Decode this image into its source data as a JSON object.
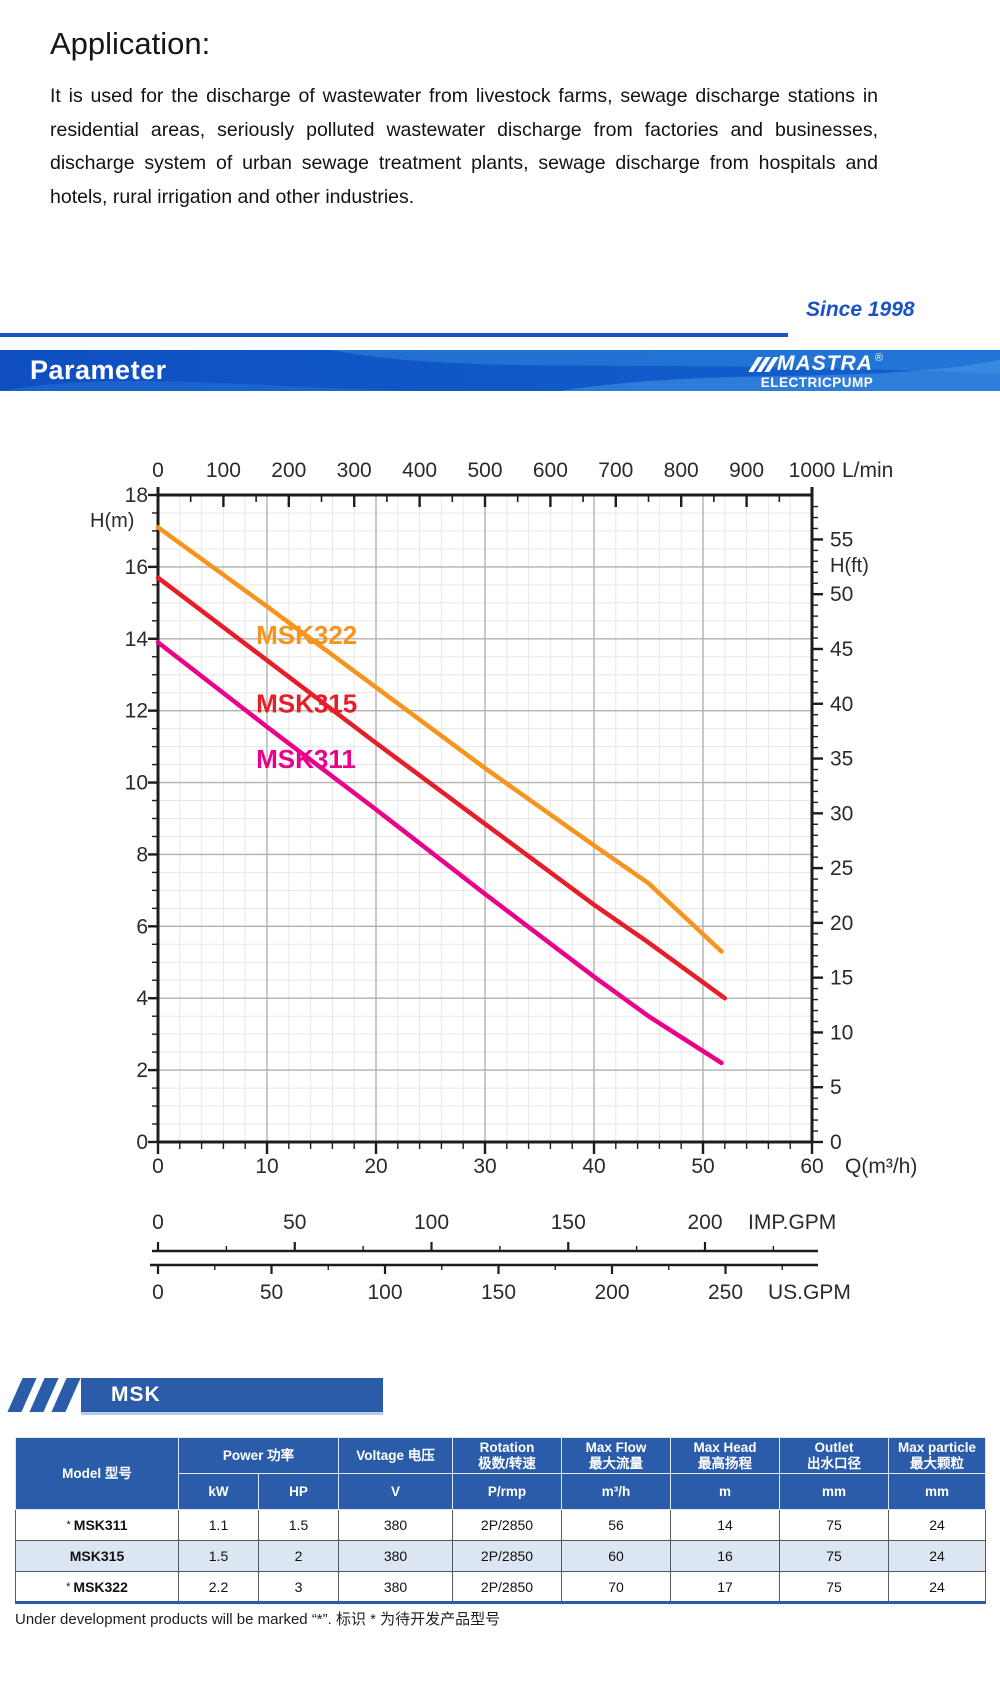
{
  "application": {
    "title": "Application:",
    "body": "It is used for the discharge of wastewater from livestock farms, sewage discharge stations in residential areas, seriously polluted wastewater discharge from factories and businesses, discharge system of urban sewage treatment plants, sewage discharge from hospitals and hotels, rural irrigation and other industries."
  },
  "tagline": {
    "since": "Since 1998"
  },
  "banner": {
    "title": "Parameter",
    "brand": "MASTRA",
    "registered": "®",
    "brand_sub": "ELECTRICPUMP"
  },
  "badge": {
    "label": "MSK"
  },
  "chart_data": {
    "type": "line",
    "title": "",
    "x_bottom": {
      "label": "Q(m³/h)",
      "ticks": [
        0,
        10,
        20,
        30,
        40,
        50,
        60
      ],
      "range": [
        0,
        60
      ]
    },
    "x_top": {
      "label": "L/min",
      "ticks": [
        0,
        100,
        200,
        300,
        400,
        500,
        600,
        700,
        800,
        900,
        1000
      ],
      "range": [
        0,
        1000
      ]
    },
    "x_imp": {
      "label": "IMP.GPM",
      "ticks": [
        0,
        50,
        100,
        150,
        200
      ]
    },
    "x_us": {
      "label": "US.GPM",
      "ticks": [
        0,
        50,
        100,
        150,
        200,
        250
      ]
    },
    "y_left": {
      "label": "H(m)",
      "ticks": [
        0,
        2,
        4,
        6,
        8,
        10,
        12,
        14,
        16,
        18
      ],
      "range": [
        0,
        18
      ]
    },
    "y_right": {
      "label": "H(ft)",
      "ticks": [
        0,
        5,
        10,
        15,
        20,
        25,
        30,
        35,
        40,
        45,
        50,
        55
      ]
    },
    "grid": {
      "on": true,
      "minor_q_step": 2,
      "minor_h_step": 0.5,
      "major_q_step": 10,
      "major_h_step": 2
    },
    "series": [
      {
        "name": "MSK322",
        "color": "#f7941d",
        "points_q_h": [
          [
            0,
            17.1
          ],
          [
            10,
            14.9
          ],
          [
            20,
            12.65
          ],
          [
            30,
            10.4
          ],
          [
            40,
            8.25
          ],
          [
            45,
            7.2
          ],
          [
            51.7,
            5.3
          ]
        ],
        "label_at_q_h": [
          9.0,
          13.85
        ]
      },
      {
        "name": "MSK315",
        "color": "#e61e2a",
        "points_q_h": [
          [
            0,
            15.7
          ],
          [
            10,
            13.4
          ],
          [
            20,
            11.1
          ],
          [
            30,
            8.85
          ],
          [
            40,
            6.6
          ],
          [
            45,
            5.55
          ],
          [
            52.0,
            4.0
          ]
        ],
        "label_at_q_h": [
          9.0,
          11.95
        ]
      },
      {
        "name": "MSK311",
        "color": "#eb008b",
        "points_q_h": [
          [
            0,
            13.9
          ],
          [
            10,
            11.55
          ],
          [
            20,
            9.25
          ],
          [
            30,
            6.9
          ],
          [
            40,
            4.6
          ],
          [
            45,
            3.5
          ],
          [
            51.7,
            2.2
          ]
        ],
        "label_at_q_h": [
          9.0,
          10.4
        ]
      }
    ]
  },
  "table": {
    "headers": {
      "model": "Model 型号",
      "power": "Power 功率",
      "voltage": "Voltage 电压",
      "rotation": "Rotation\n极数/转速",
      "max_flow": "Max Flow\n最大流量",
      "max_head": "Max Head\n最高扬程",
      "outlet": "Outlet\n出水口径",
      "max_particle": "Max particle\n最大颗粒"
    },
    "units": [
      "kW",
      "HP",
      "V",
      "P/rmp",
      "m³/h",
      "m",
      "mm",
      "mm"
    ],
    "dev_marker": "*",
    "rows": [
      {
        "model": "MSK311",
        "under_development": true,
        "values": [
          "1.1",
          "1.5",
          "380",
          "2P/2850",
          "56",
          "14",
          "75",
          "24"
        ]
      },
      {
        "model": "MSK315",
        "under_development": false,
        "values": [
          "1.5",
          "2",
          "380",
          "2P/2850",
          "60",
          "16",
          "75",
          "24"
        ]
      },
      {
        "model": "MSK322",
        "under_development": true,
        "values": [
          "2.2",
          "3",
          "380",
          "2P/2850",
          "70",
          "17",
          "75",
          "24"
        ]
      }
    ]
  },
  "footnote": "Under development products will be marked “*”.   标识 * 为待开发产品型号",
  "colors": {
    "brand_blue": "#2a5caa",
    "banner_blue": "#1156c6",
    "divider_blue": "#1b52c8",
    "row_alt": "#dce6f2",
    "curve_msk322": "#f7941d",
    "curve_msk315": "#e61e2a",
    "curve_msk311": "#eb008b"
  }
}
